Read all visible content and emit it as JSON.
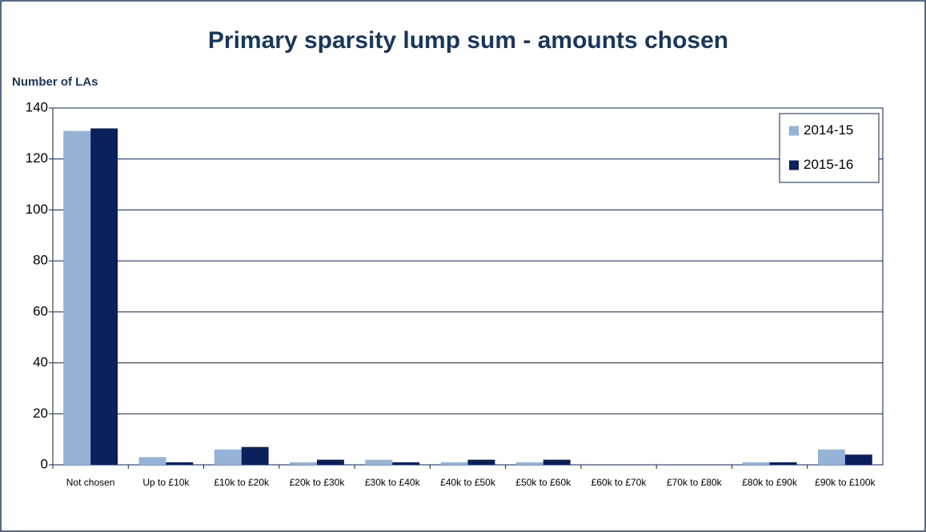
{
  "chart_data": {
    "type": "bar",
    "title": "Primary sparsity lump sum - amounts chosen",
    "y_label": "Number of LAs",
    "categories": [
      "Not chosen",
      "Up to £10k",
      "£10k to £20k",
      "£20k to £30k",
      "£30k to £40k",
      "£40k to £50k",
      "£50k to £60k",
      "£60k to £70k",
      "£70k to £80k",
      "£80k to £90k",
      "£90k to £100k"
    ],
    "series": [
      {
        "name": "2014-15",
        "color": "#95b3d7",
        "values": [
          131,
          3,
          6,
          1,
          2,
          1,
          1,
          0,
          0,
          1,
          6
        ]
      },
      {
        "name": "2015-16",
        "color": "#0b215e",
        "values": [
          132,
          1,
          7,
          2,
          1,
          2,
          2,
          0,
          0,
          1,
          4
        ]
      }
    ],
    "ylim": [
      0,
      140
    ],
    "yticks": [
      0,
      20,
      40,
      60,
      80,
      100,
      120,
      140
    ],
    "grid": true,
    "legend": "top-right"
  }
}
